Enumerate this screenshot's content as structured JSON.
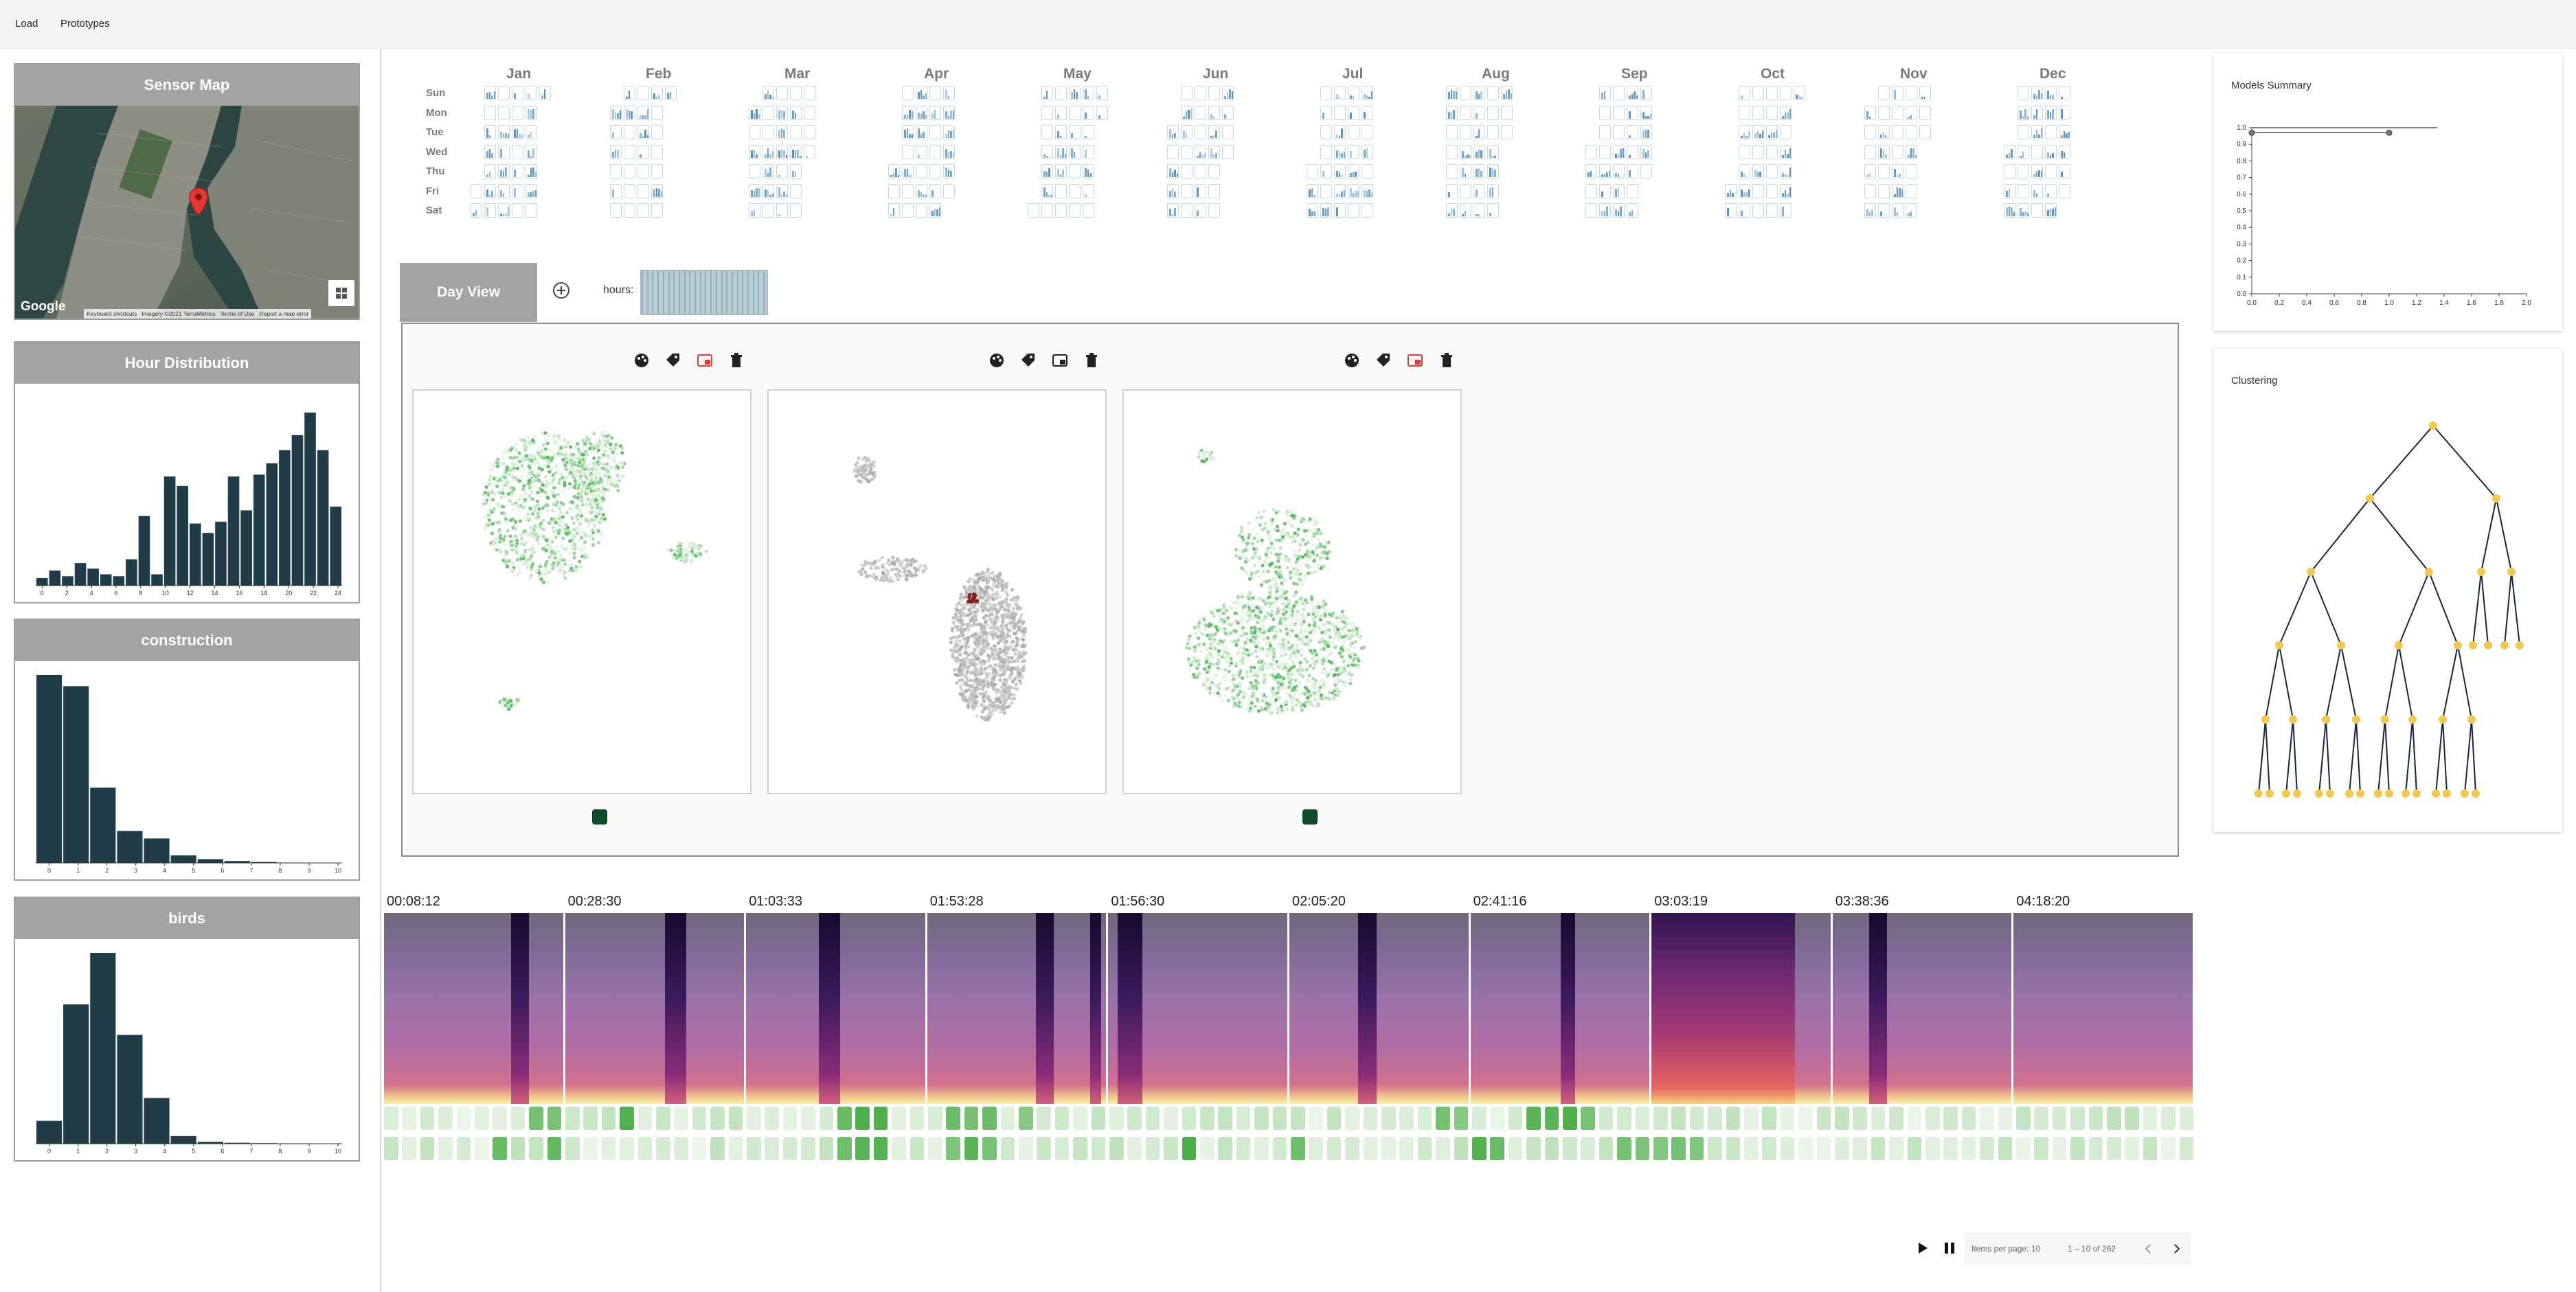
{
  "toolbar": {
    "load_label": "Load",
    "prototypes_label": "Prototypes"
  },
  "sensor_map": {
    "title": "Sensor Map",
    "attribution": {
      "logo": "Google",
      "shortcuts": "Keyboard shortcuts",
      "imagery": "Imagery ©2021 TerraMetrics",
      "terms": "Terms of Use",
      "report": "Report a map error"
    }
  },
  "hour_distribution": {
    "title": "Hour Distribution",
    "chart_data": {
      "type": "bar",
      "categories": [
        0,
        1,
        2,
        3,
        4,
        5,
        6,
        7,
        8,
        9,
        10,
        11,
        12,
        13,
        14,
        15,
        16,
        17,
        18,
        19,
        20,
        21,
        22,
        23
      ],
      "values": [
        0.04,
        0.08,
        0.05,
        0.12,
        0.09,
        0.06,
        0.05,
        0.14,
        0.37,
        0.06,
        0.58,
        0.53,
        0.33,
        0.28,
        0.34,
        0.58,
        0.4,
        0.59,
        0.65,
        0.72,
        0.8,
        0.92,
        0.72,
        0.42
      ],
      "xticks": [
        "0",
        "2",
        "4",
        "6",
        "8",
        "10",
        "12",
        "14",
        "16",
        "18",
        "20",
        "22",
        "24"
      ],
      "ylim": [
        0,
        1
      ]
    }
  },
  "construction": {
    "title": "construction",
    "chart_data": {
      "type": "bar",
      "categories": [
        0,
        1,
        2,
        3,
        4,
        5,
        6,
        7,
        8,
        9
      ],
      "values": [
        1.0,
        0.94,
        0.4,
        0.17,
        0.13,
        0.04,
        0.02,
        0.01,
        0.005,
        0.002
      ],
      "xticks": [
        "0",
        "1",
        "2",
        "3",
        "4",
        "5",
        "6",
        "7",
        "8",
        "9",
        "10"
      ],
      "ylim": [
        0,
        1
      ]
    }
  },
  "birds": {
    "title": "birds",
    "chart_data": {
      "type": "bar",
      "categories": [
        0,
        1,
        2,
        3,
        4,
        5,
        6,
        7,
        8,
        9
      ],
      "values": [
        0.12,
        0.73,
        1.0,
        0.57,
        0.24,
        0.04,
        0.01,
        0.005,
        0.003,
        0.002
      ],
      "xticks": [
        "0",
        "1",
        "2",
        "3",
        "4",
        "5",
        "6",
        "7",
        "8",
        "9",
        "10"
      ],
      "ylim": [
        0,
        1
      ]
    }
  },
  "calendar": {
    "months": [
      "Jan",
      "Feb",
      "Mar",
      "Apr",
      "May",
      "Jun",
      "Jul",
      "Aug",
      "Sep",
      "Oct",
      "Nov",
      "Dec"
    ],
    "days": [
      "Sun",
      "Mon",
      "Tue",
      "Wed",
      "Thu",
      "Fri",
      "Sat"
    ],
    "bar_color": "#4c8fc7"
  },
  "dayview": {
    "tab_label": "Day View",
    "hours_label": "hours:"
  },
  "projections": [
    {
      "palette": "green",
      "has_swatch": true
    },
    {
      "palette": "gray",
      "has_swatch": false
    },
    {
      "palette": "green",
      "has_swatch": true
    }
  ],
  "timeline": {
    "labels": [
      "00:08:12",
      "00:28:30",
      "01:03:33",
      "01:53:28",
      "01:56:30",
      "02:05:20",
      "02:41:16",
      "03:03:19",
      "03:38:36",
      "04:18:20"
    ]
  },
  "paginator": {
    "items_label": "Items per page:",
    "items_value": "10",
    "range": "1 – 10 of 262"
  },
  "models_summary": {
    "title": "Models Summary",
    "chart_data": {
      "type": "line",
      "series": [
        {
          "x": [
            0.0,
            1.35
          ],
          "y": [
            1.0,
            1.0
          ]
        },
        {
          "x": [
            0.0,
            1.0
          ],
          "y": [
            0.97,
            0.97
          ]
        }
      ],
      "xlim": [
        0,
        2
      ],
      "ylim": [
        0,
        1
      ],
      "xticks": [
        "0.0",
        "0.2",
        "0.4",
        "0.6",
        "0.8",
        "1.0",
        "1.2",
        "1.4",
        "1.6",
        "1.8",
        "2.0"
      ],
      "yticks": [
        "0.0",
        "0.1",
        "0.2",
        "0.3",
        "0.4",
        "0.5",
        "0.6",
        "0.7",
        "0.8",
        "0.9",
        "1.0"
      ]
    }
  },
  "clustering": {
    "title": "Clustering",
    "node_color": "#f2c94c"
  }
}
